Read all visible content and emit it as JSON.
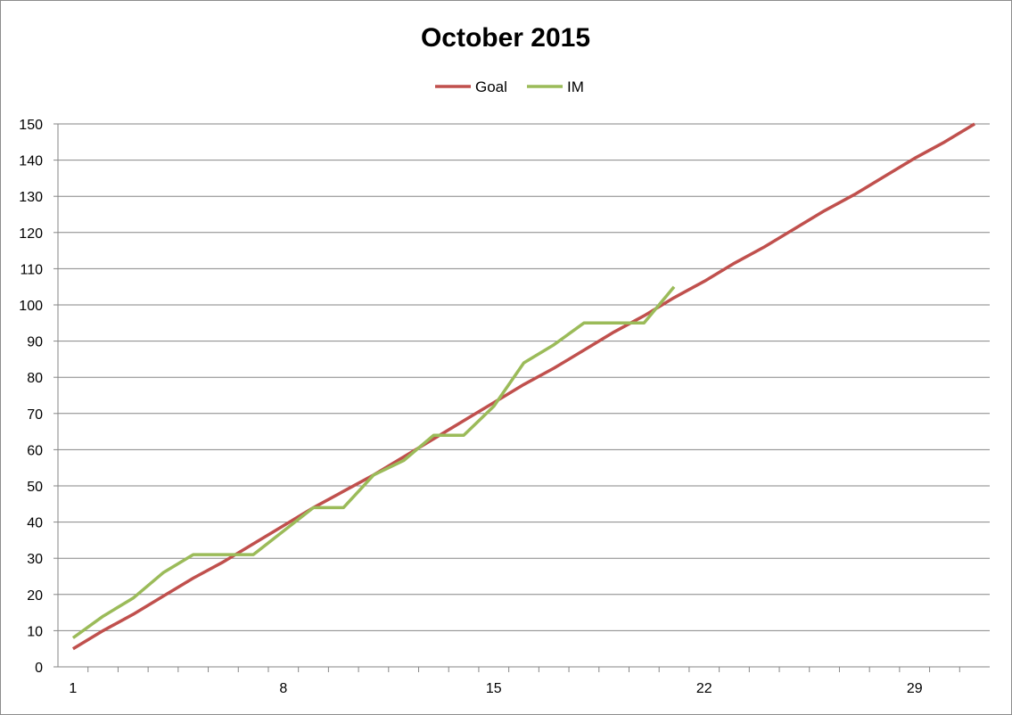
{
  "chart_data": {
    "type": "line",
    "title": "October 2015",
    "xlabel": "",
    "ylabel": "",
    "xlim": [
      1,
      31
    ],
    "ylim": [
      0,
      150
    ],
    "x_ticks": [
      1,
      8,
      15,
      22,
      29
    ],
    "y_ticks": [
      0,
      10,
      20,
      30,
      40,
      50,
      60,
      70,
      80,
      90,
      100,
      110,
      120,
      130,
      140,
      150
    ],
    "grid": "horizontal",
    "legend": "top-center",
    "series": [
      {
        "name": "Goal",
        "color": "#c0504d",
        "x": [
          1,
          2,
          3,
          4,
          5,
          6,
          7,
          8,
          9,
          10,
          11,
          12,
          13,
          14,
          15,
          16,
          17,
          18,
          19,
          20,
          21,
          22,
          23,
          24,
          25,
          26,
          27,
          28,
          29,
          30,
          31
        ],
        "values": [
          5,
          10,
          14.5,
          19.5,
          24.5,
          29,
          34,
          39,
          44,
          48.5,
          53,
          58,
          63,
          68,
          73,
          78,
          82.5,
          87.5,
          92.5,
          97,
          102,
          106.5,
          111.5,
          116,
          121,
          126,
          130.5,
          135.5,
          140.5,
          145,
          150
        ]
      },
      {
        "name": "IM",
        "color": "#9bbb59",
        "x": [
          1,
          2,
          3,
          4,
          5,
          6,
          7,
          8,
          9,
          10,
          11,
          12,
          13,
          14,
          15,
          16,
          17,
          18,
          19,
          20,
          21
        ],
        "values": [
          8,
          14,
          19,
          26,
          31,
          31,
          31,
          37.5,
          44,
          44,
          53,
          57,
          64,
          64,
          72,
          84,
          89,
          95,
          95,
          95,
          105
        ]
      }
    ]
  }
}
